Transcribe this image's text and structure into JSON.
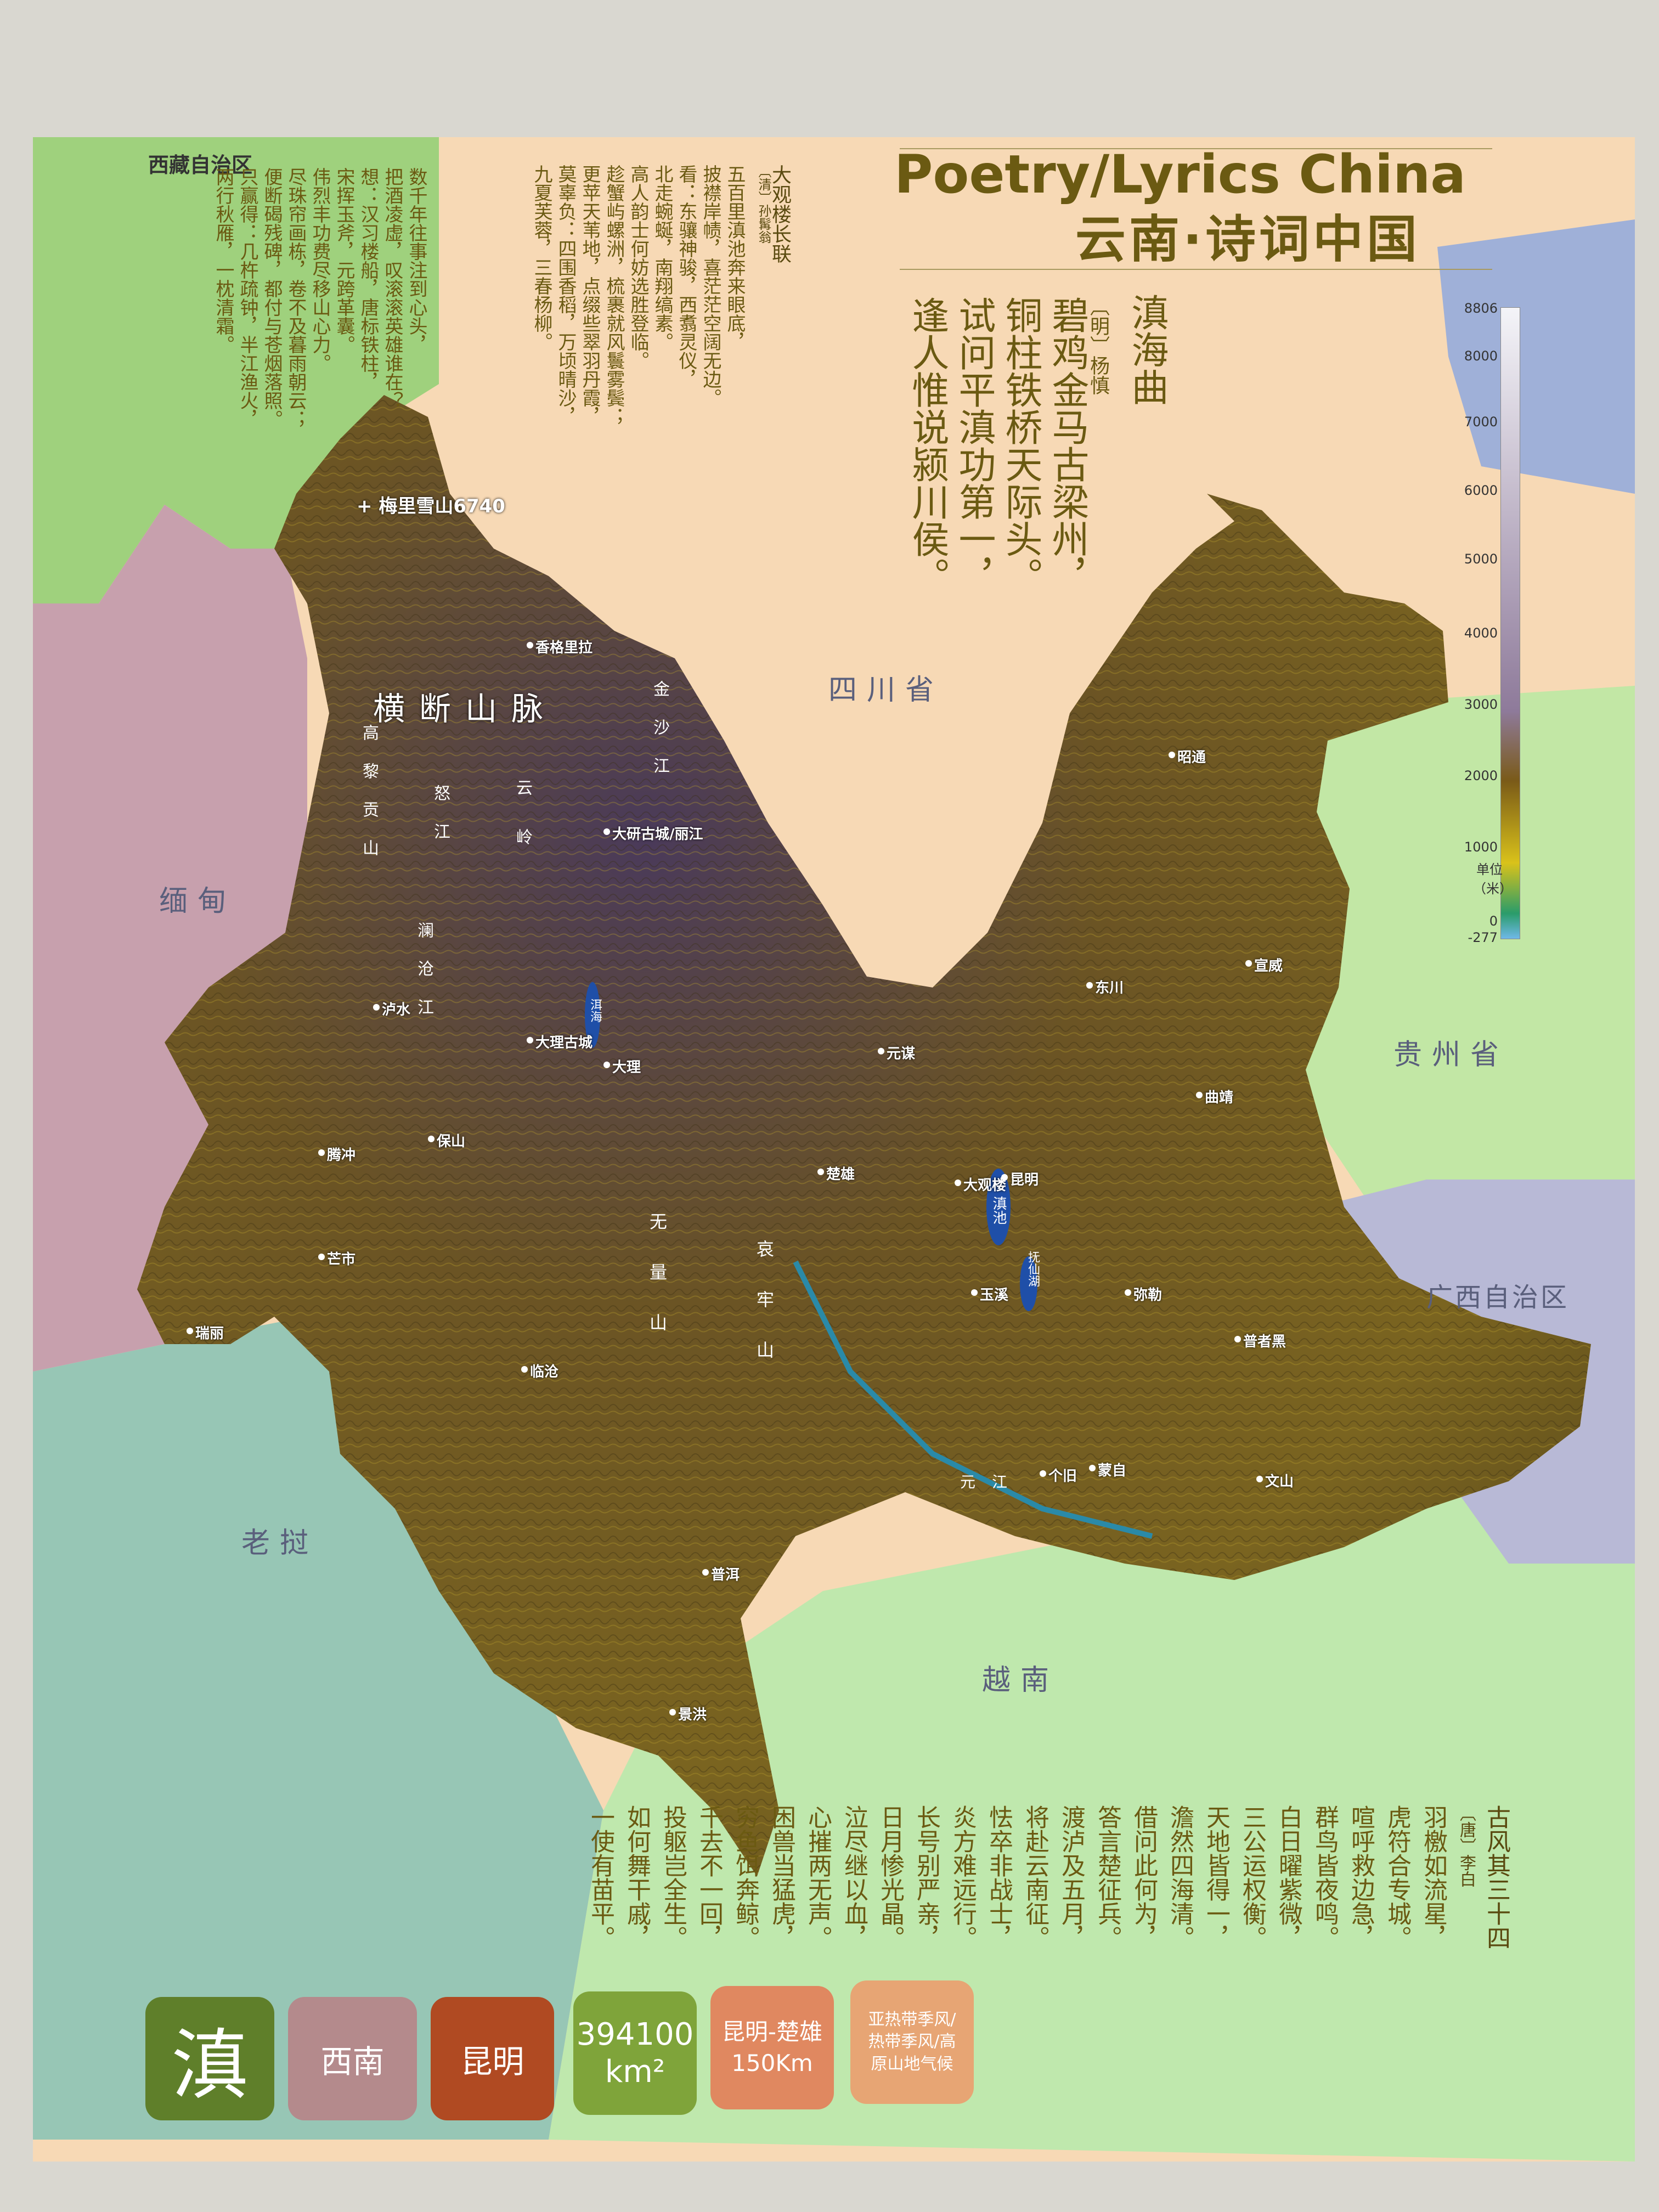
{
  "title": {
    "en": "Poetry/Lyrics China",
    "zh": "云南·诗词中国"
  },
  "regions": {
    "tibet": "西藏自治区",
    "sichuan": "四川省",
    "guizhou": "贵州省",
    "guangxi": "广西自治区",
    "myanmar": "缅甸",
    "laos": "老挝",
    "vietnam": "越南"
  },
  "terrain_labels": {
    "hengduan": "横断山脉",
    "nujiang": "怒江",
    "lancang": "澜沧江",
    "jinsha": "金沙江",
    "yunling": "云岭",
    "gaoligong": "高黎贡山",
    "wuliang": "无量山",
    "ailao": "哀牢山",
    "yuanjiang": "元江",
    "peak": "梅里雪山6740"
  },
  "cities": [
    {
      "name": "香格里拉"
    },
    {
      "name": "大研古城/丽江"
    },
    {
      "name": "泸水"
    },
    {
      "name": "大理古城"
    },
    {
      "name": "大理"
    },
    {
      "name": "保山"
    },
    {
      "name": "腾冲"
    },
    {
      "name": "芒市"
    },
    {
      "name": "瑞丽"
    },
    {
      "name": "临沧"
    },
    {
      "name": "普洱"
    },
    {
      "name": "景洪"
    },
    {
      "name": "楚雄"
    },
    {
      "name": "元谋"
    },
    {
      "name": "东川"
    },
    {
      "name": "昭通"
    },
    {
      "name": "宣威"
    },
    {
      "name": "曲靖"
    },
    {
      "name": "大观楼"
    },
    {
      "name": "昆明"
    },
    {
      "name": "玉溪"
    },
    {
      "name": "弥勒"
    },
    {
      "name": "普者黑"
    },
    {
      "name": "个旧"
    },
    {
      "name": "蒙自"
    },
    {
      "name": "文山"
    }
  ],
  "lakes": {
    "dianchi": "滇池",
    "fuxian": "抚仙湖",
    "erhai": "洱海"
  },
  "legend": {
    "ticks": [
      "8806",
      "8000",
      "7000",
      "6000",
      "5000",
      "4000",
      "3000",
      "2000",
      "1000",
      "0",
      "-277"
    ],
    "unit": "单位（米）"
  },
  "poem_right": {
    "title": "滇海曲",
    "author": "〔明〕杨慎",
    "lines": [
      "碧鸡金马古梁州，",
      "铜柱铁桥天际头。",
      "试问平滇功第一，",
      "逢人惟说颍川侯。"
    ]
  },
  "poem_daguanlou": {
    "title": "大观楼长联",
    "author": "〔清〕孙髯翁",
    "lines": [
      "五百里滇池奔来眼底，",
      "披襟岸帻，喜茫茫空阔无边。",
      "看：东骧神骏，西翥灵仪，",
      "北走蜿蜒，南翔缟素。",
      "高人韵士何妨选胜登临。",
      "趁蟹屿螺洲，梳裹就风鬟雾鬓；",
      "更苹天苇地，点缀些翠羽丹霞，",
      "莫辜负：四围香稻，万顷晴沙，",
      "九夏芙蓉，三春杨柳。",
      "数千年往事注到心头，",
      "把酒凌虚，叹滚滚英雄谁在？",
      "想：汉习楼船，唐标铁柱，",
      "宋挥玉斧，元跨革囊。",
      "伟烈丰功费尽移山心力。",
      "尽珠帘画栋，卷不及暮雨朝云；",
      "便断碣残碑，都付与苍烟落照。",
      "只赢得：几杵疏钟，半江渔火，",
      "两行秋雁，一枕清霜。"
    ]
  },
  "poem_bottom": {
    "title": "古风其三十四",
    "author": "〔唐〕李白",
    "lines": [
      "羽檄如流星，",
      "虎符合专城。",
      "喧呼救边急，",
      "群鸟皆夜鸣。",
      "白日曜紫微，",
      "三公运权衡。",
      "天地皆得一，",
      "澹然四海清。",
      "借问此何为，",
      "答言楚征兵。",
      "渡泸及五月，",
      "将赴云南征。",
      "怯卒非战士，",
      "炎方难远行。",
      "长号别严亲，",
      "日月惨光晶。",
      "泣尽继以血，",
      "心摧两无声。",
      "困兽当猛虎，",
      "穷鱼饵奔鲸。",
      "千去不一回，",
      "投躯岂全生。",
      "如何舞干戚，",
      "一使有苗平。"
    ]
  },
  "info_badges": {
    "abbr": "滇",
    "region": "西南",
    "capital": "昆明",
    "area_value": "394100",
    "area_unit": "km²",
    "route": "昆明-楚雄",
    "route_dist": "150Km",
    "climate": "亚热带季风/热带季风/高原山地气候"
  },
  "colors": {
    "tibet": "#9fd17d",
    "myanmar": "#c7a0ad",
    "laos": "#97c6b5",
    "sichuan": "#f7d9b5",
    "guizhou": "#c2e7a5",
    "guangxi": "#b8b9d6",
    "vietnam": "#bfe8ad",
    "terrain": "#6b5a22",
    "text_olive": "#6b5a12",
    "badge_green": "#5f7f2a",
    "badge_mauve": "#b48a8c",
    "badge_brown": "#b04a22",
    "badge_olive": "#7fa43a",
    "badge_orange": "#e08860",
    "badge_peach": "#e7a574"
  }
}
